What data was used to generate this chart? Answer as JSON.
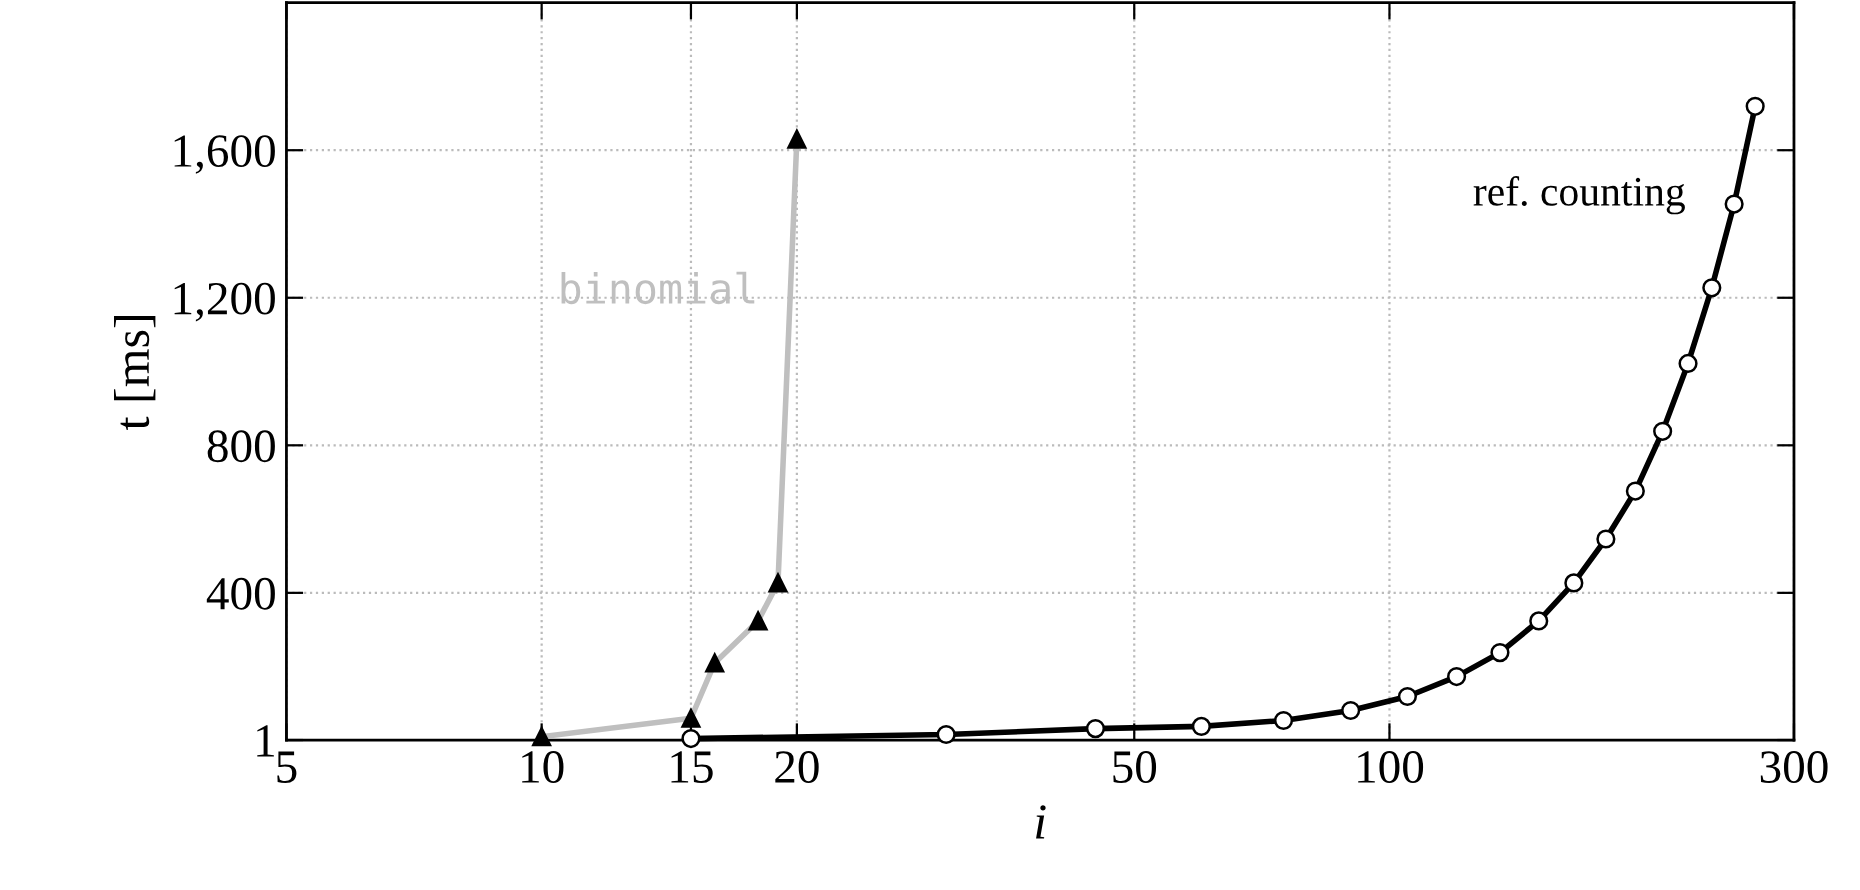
{
  "chart_data": {
    "type": "line",
    "xlabel": "i",
    "ylabel": "t [ms]",
    "log": "x",
    "xlim": [
      5,
      300
    ],
    "xticks": [
      5,
      10,
      15,
      20,
      50,
      100,
      300
    ],
    "ylim": [
      1,
      2000
    ],
    "yticks": [
      1,
      400,
      800,
      {
        "value": 1200,
        "label": "1,200"
      },
      {
        "value": 1600,
        "label": "1,600"
      }
    ],
    "grid": true,
    "legend": false,
    "line_style": "solid",
    "series": [
      {
        "name": "binomial",
        "color": "#bfbfbf",
        "marker": "triangle",
        "x": [
          10,
          15,
          16,
          18,
          19,
          20
        ],
        "values": [
          10,
          60,
          210,
          324,
          427,
          1630
        ]
      },
      {
        "name": "ref. counting",
        "color": "#000000",
        "marker": "circle",
        "x": [
          15,
          30,
          45,
          60,
          75,
          90,
          105,
          120,
          135,
          150,
          165,
          180,
          195,
          210,
          225,
          240,
          255,
          270
        ],
        "values": [
          5,
          16,
          32,
          38,
          54,
          81,
          119,
          173,
          238,
          324,
          427,
          546,
          676,
          838,
          1022,
          1227,
          1454,
          1719
        ]
      }
    ]
  }
}
